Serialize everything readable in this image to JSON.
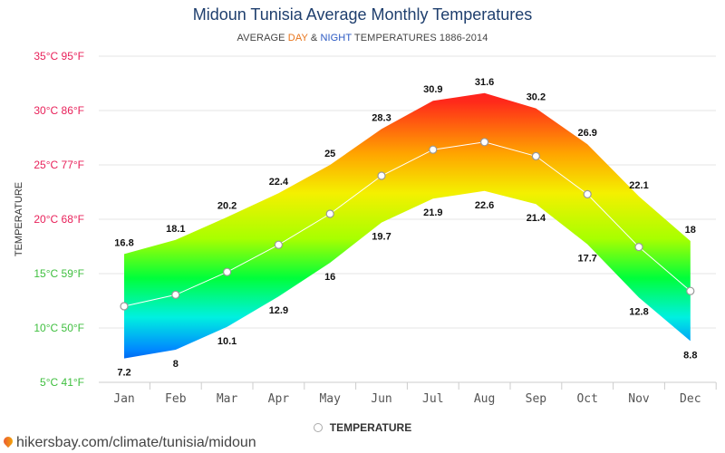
{
  "title": "Midoun Tunisia Average Monthly Temperatures",
  "subtitle": {
    "pre": "AVERAGE ",
    "day": "DAY",
    "mid": " & ",
    "night": "NIGHT",
    "post": " TEMPERATURES 1886-2014"
  },
  "legend_label": "TEMPERATURE",
  "source": "hikersbay.com/climate/tunisia/midoun",
  "colors": {
    "title": "#1f3f6e",
    "day": "#e8741a",
    "night": "#2b59c3",
    "line": "#ffffff"
  },
  "chart_data": {
    "type": "area",
    "title": "Midoun Tunisia Average Monthly Temperatures",
    "ylabel": "TEMPERATURE",
    "categories": [
      "Jan",
      "Feb",
      "Mar",
      "Apr",
      "May",
      "Jun",
      "Jul",
      "Aug",
      "Sep",
      "Oct",
      "Nov",
      "Dec"
    ],
    "ylim": [
      5,
      35
    ],
    "yticks": [
      {
        "value": 35,
        "label": "35°C 95°F",
        "color": "#e8215a"
      },
      {
        "value": 30,
        "label": "30°C 86°F",
        "color": "#e8215a"
      },
      {
        "value": 25,
        "label": "25°C 77°F",
        "color": "#e8215a"
      },
      {
        "value": 20,
        "label": "20°C 68°F",
        "color": "#e8215a"
      },
      {
        "value": 15,
        "label": "15°C 59°F",
        "color": "#3fbf3f"
      },
      {
        "value": 10,
        "label": "10°C 50°F",
        "color": "#3fbf3f"
      },
      {
        "value": 5,
        "label": "5°C 41°F",
        "color": "#3fbf3f"
      }
    ],
    "series": [
      {
        "values": [
          16.8,
          18.1,
          20.2,
          22.4,
          25,
          28.3,
          30.9,
          31.6,
          30.2,
          26.9,
          22.1,
          18
        ]
      },
      {
        "values": [
          7.2,
          8,
          10.1,
          12.9,
          16,
          19.7,
          21.9,
          22.6,
          21.4,
          17.7,
          12.8,
          8.8
        ]
      },
      {
        "name": "TEMPERATURE",
        "values": [
          12,
          13.05,
          15.15,
          17.65,
          20.5,
          24,
          26.4,
          27.1,
          25.8,
          22.3,
          17.45,
          13.4
        ]
      }
    ],
    "grid": true,
    "legend": "bottom-center"
  }
}
